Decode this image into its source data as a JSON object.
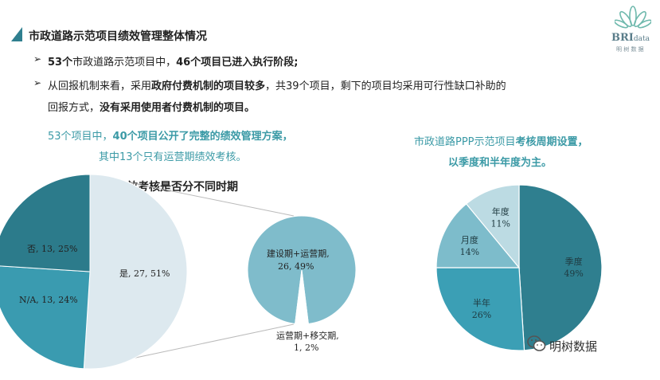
{
  "slide": {
    "title": "市政道路示范项目绩效管理整体情况",
    "bullet1": {
      "b1": "53个",
      "t1": "市政道路示范项目中，",
      "b2": "46个项目已进入执行阶段;"
    },
    "bullet2": {
      "t1": "从回报机制来看，采用",
      "b1": "政府付费机制的项目较多",
      "t2": "，共39个项目，剩下的项目均采用可行性缺口补助的",
      "t3": "回报方式，",
      "b2": "没有采用使用者付费机制的项目。"
    },
    "bullet_marker": "➢",
    "left_note": {
      "a": "53个项目中，",
      "b": "40个项目公开了完整的绩效管理方案，",
      "c": "其中13个只有运营期绩效考核。"
    },
    "right_note": {
      "a": "市政道路PPP示范项目",
      "b": "考核周期设置，",
      "c": "以季度和半年度为主。"
    },
    "logo": {
      "text": "BRI",
      "small": "data",
      "sub": "明 树 数 据"
    },
    "watermark": "明树数据"
  },
  "chart_data": [
    {
      "type": "pie",
      "title": "绩效考核是否分不同时期",
      "slices": [
        {
          "label": "是",
          "value": 27,
          "percent": 51,
          "display": "是, 27, 51%",
          "color": "#dde9ef"
        },
        {
          "label": "否",
          "value": 13,
          "percent": 25,
          "display": "否, 13, 25%",
          "color": "#3a9bb0"
        },
        {
          "label": "N/A",
          "value": 13,
          "percent": 24,
          "display": "N/A, 13, 24%",
          "color": "#2c7b8b"
        }
      ]
    },
    {
      "type": "pie",
      "title": "",
      "slices": [
        {
          "label": "建设期+运营期",
          "value": 26,
          "percent": 49,
          "line1": "建设期+运营期,",
          "line2": "26, 49%",
          "color": "#7fbccb"
        },
        {
          "label": "运营期+移交期",
          "value": 1,
          "percent": 2,
          "line1": "运营期+移交期,",
          "line2": "1, 2%",
          "color": "#ffffff"
        }
      ]
    },
    {
      "type": "pie",
      "title": "",
      "slices": [
        {
          "label": "季度",
          "percent": 49,
          "pct_text": "49%",
          "color": "#2f7f8f"
        },
        {
          "label": "半年",
          "percent": 26,
          "pct_text": "26%",
          "color": "#3b9fb5"
        },
        {
          "label": "月度",
          "percent": 14,
          "pct_text": "14%",
          "color": "#7dbccb"
        },
        {
          "label": "年度",
          "percent": 11,
          "pct_text": "11%",
          "color": "#bcdbe3"
        }
      ]
    }
  ]
}
